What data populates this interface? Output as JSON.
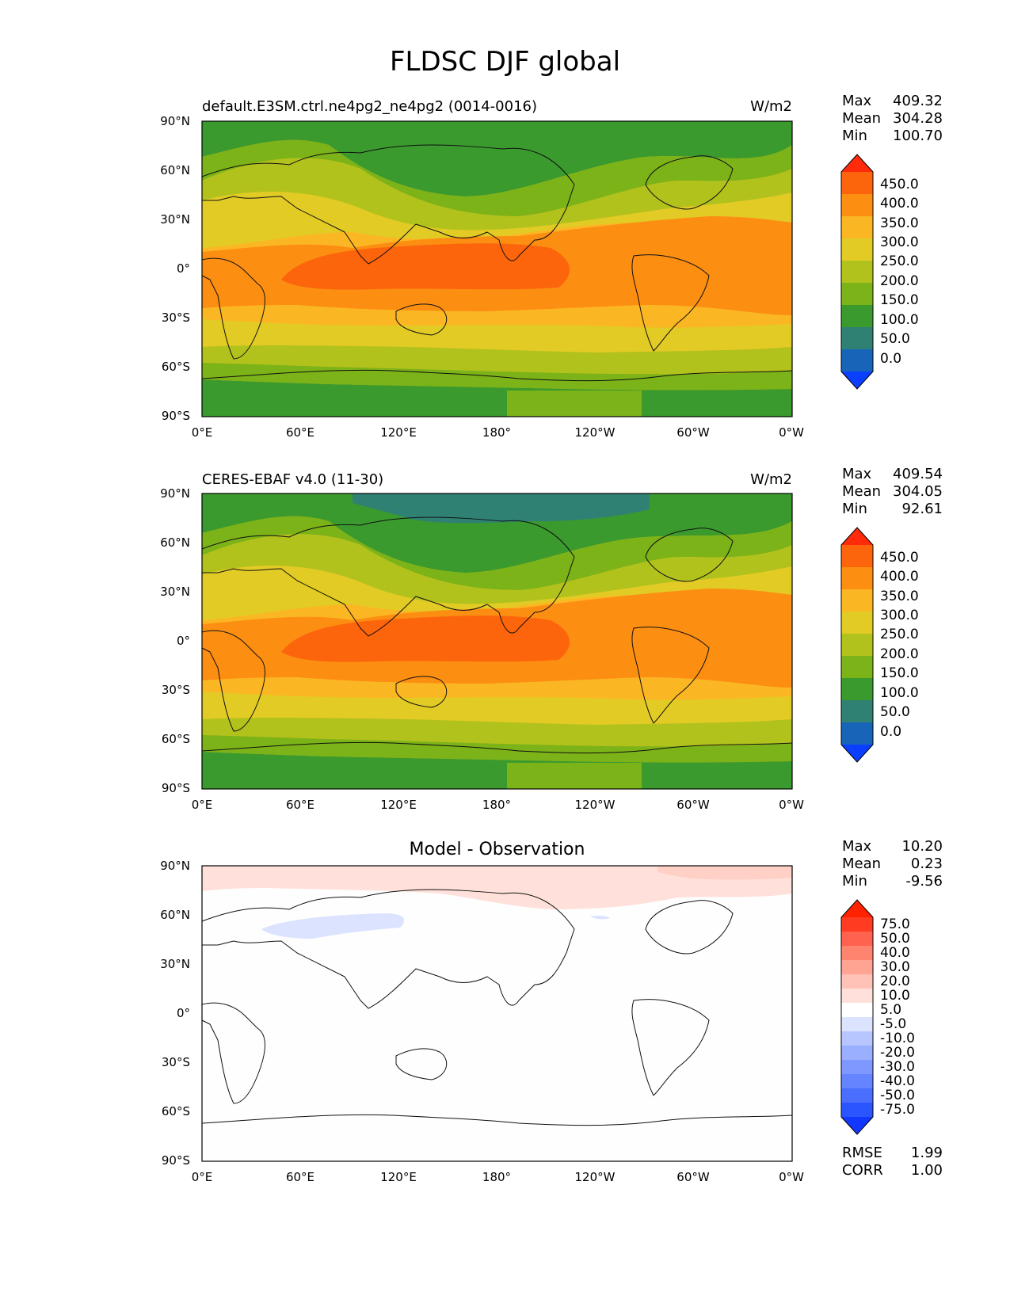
{
  "title": "FLDSC DJF global",
  "colors": {
    "bg": "#ffffff",
    "fill_levels": [
      "#0a3fff",
      "#1764b8",
      "#2f8273",
      "#3a9a2e",
      "#7cb318",
      "#b2c21d",
      "#e2cb25",
      "#fbb723",
      "#fc8e12",
      "#fd650d",
      "#ff2b0a"
    ],
    "diff_levels": [
      "#1238ff",
      "#2b55ff",
      "#4a6fff",
      "#6584ff",
      "#7f98ff",
      "#9aafff",
      "#b7c6ff",
      "#dbe3ff",
      "#ffffff",
      "#ffe0da",
      "#ffc2b6",
      "#ffa492",
      "#ff846f",
      "#ff624e",
      "#ff3b22",
      "#ff2200"
    ]
  },
  "panels": [
    {
      "kind": "test",
      "left_label": "default.E3SM.ctrl.ne4pg2_ne4pg2 (0014-0016)",
      "units": "W/m2",
      "stats": {
        "max_label": "Max",
        "max": "409.32",
        "mean_label": "Mean",
        "mean": "304.28",
        "min_label": "Min",
        "min": "100.70"
      },
      "colorbar_ticks": [
        "450.0",
        "400.0",
        "350.0",
        "300.0",
        "250.0",
        "200.0",
        "150.0",
        "100.0",
        "50.0",
        "0.0"
      ],
      "lat_ticks": [
        "90°N",
        "60°N",
        "30°N",
        "0°",
        "30°S",
        "60°S",
        "90°S"
      ],
      "lon_ticks": [
        "0°E",
        "60°E",
        "120°E",
        "180°",
        "120°W",
        "60°W",
        "0°W"
      ]
    },
    {
      "kind": "reference",
      "left_label": "CERES-EBAF v4.0 (11-30)",
      "units": "W/m2",
      "stats": {
        "max_label": "Max",
        "max": "409.54",
        "mean_label": "Mean",
        "mean": "304.05",
        "min_label": "Min",
        "min": "92.61"
      },
      "colorbar_ticks": [
        "450.0",
        "400.0",
        "350.0",
        "300.0",
        "250.0",
        "200.0",
        "150.0",
        "100.0",
        "50.0",
        "0.0"
      ],
      "lat_ticks": [
        "90°N",
        "60°N",
        "30°N",
        "0°",
        "30°S",
        "60°S",
        "90°S"
      ],
      "lon_ticks": [
        "0°E",
        "60°E",
        "120°E",
        "180°",
        "120°W",
        "60°W",
        "0°W"
      ]
    },
    {
      "kind": "difference",
      "center_title": "Model - Observation",
      "stats": {
        "max_label": "Max",
        "max": "10.20",
        "mean_label": "Mean",
        "mean": "0.23",
        "min_label": "Min",
        "min": "-9.56"
      },
      "colorbar_ticks": [
        "75.0",
        "50.0",
        "40.0",
        "30.0",
        "20.0",
        "10.0",
        "5.0",
        "-5.0",
        "-10.0",
        "-20.0",
        "-30.0",
        "-40.0",
        "-50.0",
        "-75.0"
      ],
      "lat_ticks": [
        "90°N",
        "60°N",
        "30°N",
        "0°",
        "30°S",
        "60°S",
        "90°S"
      ],
      "lon_ticks": [
        "0°E",
        "60°E",
        "120°E",
        "180°",
        "120°W",
        "60°W",
        "0°W"
      ],
      "metrics": {
        "rmse_label": "RMSE",
        "rmse": "1.99",
        "corr_label": "CORR",
        "corr": "1.00"
      }
    }
  ]
}
